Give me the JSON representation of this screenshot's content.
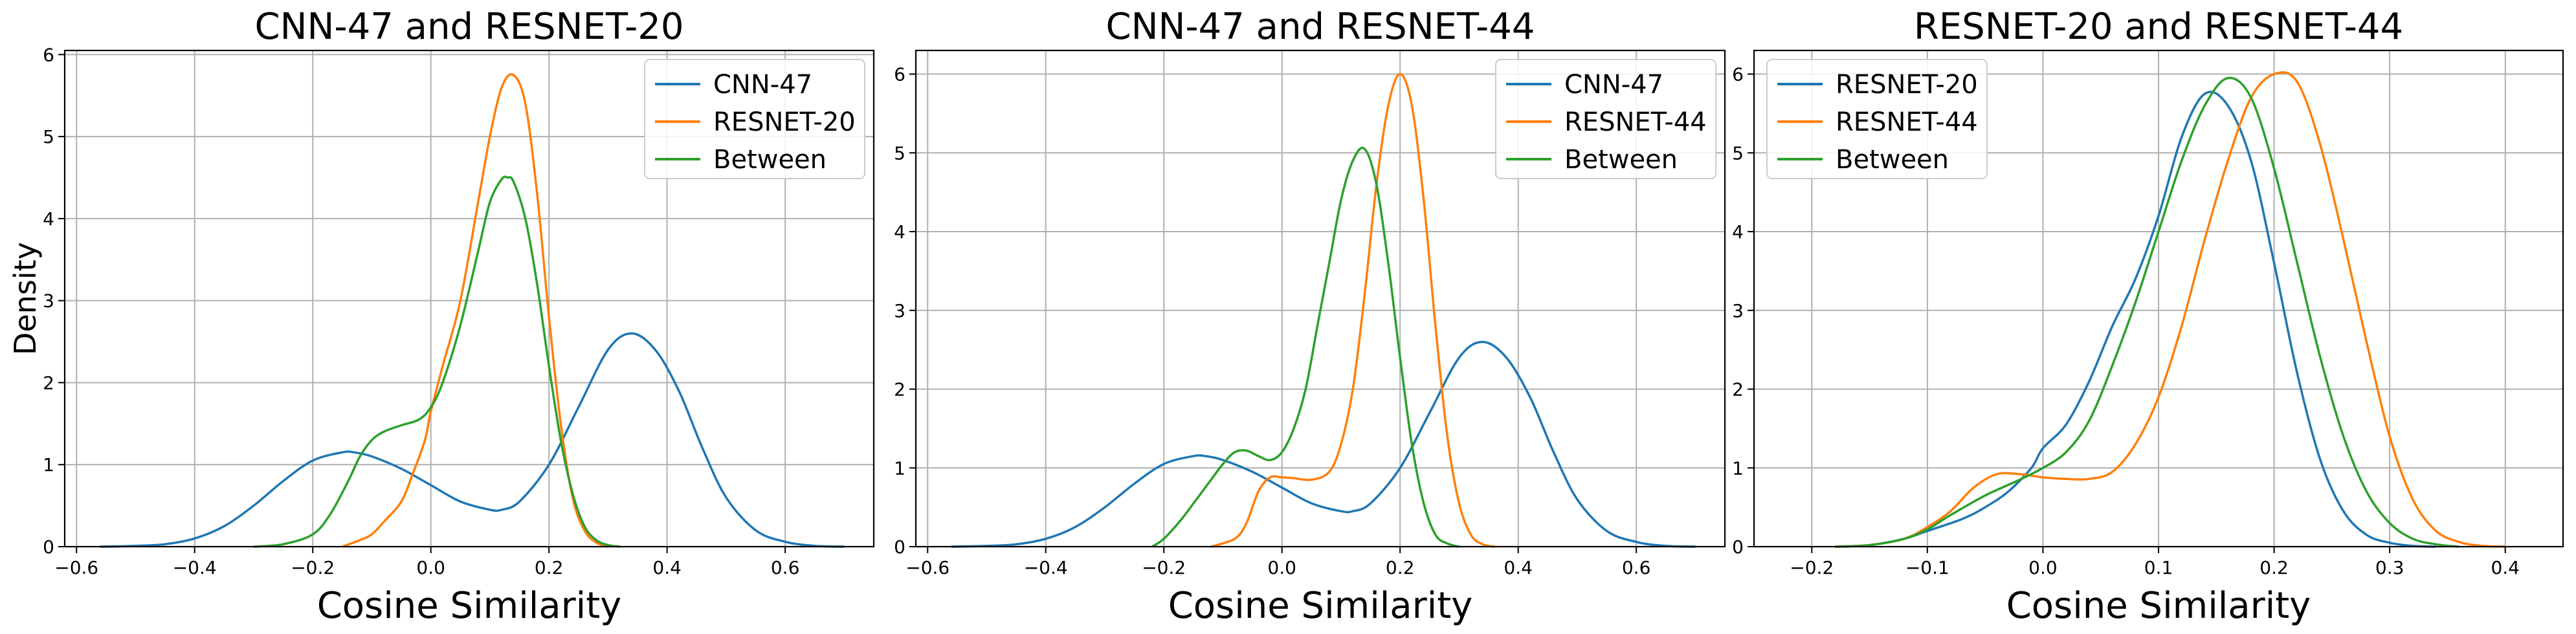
{
  "colors": {
    "CNN-47": "#1f77b4",
    "RESNET-20": "#ff7f0e",
    "RESNET-44": "#ff7f0e",
    "Between": "#2ca02c"
  },
  "chart_data": [
    {
      "type": "line",
      "title": "CNN-47 and RESNET-20",
      "xlabel": "Cosine Similarity",
      "ylabel": "Density",
      "xlim": [
        -0.62,
        0.75
      ],
      "ylim": [
        0,
        6.05
      ],
      "xticks": [
        -0.6,
        -0.4,
        -0.2,
        0.0,
        0.2,
        0.4,
        0.6
      ],
      "xtick_labels": [
        "−0.6",
        "−0.4",
        "−0.2",
        "0.0",
        "0.2",
        "0.4",
        "0.6"
      ],
      "yticks": [
        0,
        1,
        2,
        3,
        4,
        5,
        6
      ],
      "ytick_labels": [
        "0",
        "1",
        "2",
        "3",
        "4",
        "5",
        "6"
      ],
      "grid": true,
      "legend": "top-right",
      "series": [
        {
          "name": "CNN-47",
          "color": "#1f77b4",
          "x": [
            -0.56,
            -0.5,
            -0.45,
            -0.4,
            -0.35,
            -0.3,
            -0.25,
            -0.2,
            -0.15,
            -0.13,
            -0.1,
            -0.05,
            0.0,
            0.05,
            0.1,
            0.12,
            0.15,
            0.2,
            0.25,
            0.3,
            0.34,
            0.38,
            0.42,
            0.46,
            0.5,
            0.55,
            0.6,
            0.65,
            0.7
          ],
          "y": [
            0.0,
            0.01,
            0.03,
            0.1,
            0.25,
            0.5,
            0.8,
            1.05,
            1.15,
            1.15,
            1.1,
            0.95,
            0.75,
            0.55,
            0.45,
            0.45,
            0.55,
            1.0,
            1.7,
            2.4,
            2.6,
            2.4,
            1.9,
            1.2,
            0.6,
            0.2,
            0.06,
            0.01,
            0.0
          ]
        },
        {
          "name": "RESNET-20",
          "color": "#ff7f0e",
          "x": [
            -0.15,
            -0.12,
            -0.1,
            -0.08,
            -0.05,
            -0.03,
            -0.01,
            0.0,
            0.02,
            0.05,
            0.08,
            0.1,
            0.12,
            0.14,
            0.16,
            0.18,
            0.2,
            0.22,
            0.24,
            0.26,
            0.28,
            0.3
          ],
          "y": [
            0.0,
            0.08,
            0.15,
            0.3,
            0.55,
            0.9,
            1.3,
            1.65,
            2.2,
            3.0,
            4.2,
            5.0,
            5.6,
            5.75,
            5.4,
            4.3,
            2.8,
            1.5,
            0.6,
            0.2,
            0.05,
            0.0
          ]
        },
        {
          "name": "Between",
          "color": "#2ca02c",
          "x": [
            -0.3,
            -0.25,
            -0.2,
            -0.17,
            -0.14,
            -0.12,
            -0.1,
            -0.08,
            -0.05,
            -0.02,
            0.0,
            0.02,
            0.05,
            0.08,
            0.1,
            0.12,
            0.13,
            0.14,
            0.16,
            0.18,
            0.2,
            0.22,
            0.24,
            0.26,
            0.28,
            0.3,
            0.32
          ],
          "y": [
            0.0,
            0.03,
            0.15,
            0.4,
            0.8,
            1.1,
            1.3,
            1.4,
            1.48,
            1.55,
            1.7,
            2.0,
            2.7,
            3.6,
            4.2,
            4.48,
            4.5,
            4.45,
            4.0,
            3.2,
            2.2,
            1.3,
            0.65,
            0.25,
            0.08,
            0.02,
            0.0
          ]
        }
      ]
    },
    {
      "type": "line",
      "title": "CNN-47 and RESNET-44",
      "xlabel": "Cosine Similarity",
      "ylabel": "",
      "xlim": [
        -0.62,
        0.75
      ],
      "ylim": [
        0,
        6.3
      ],
      "xticks": [
        -0.6,
        -0.4,
        -0.2,
        0.0,
        0.2,
        0.4,
        0.6
      ],
      "xtick_labels": [
        "−0.6",
        "−0.4",
        "−0.2",
        "0.0",
        "0.2",
        "0.4",
        "0.6"
      ],
      "yticks": [
        0,
        1,
        2,
        3,
        4,
        5,
        6
      ],
      "ytick_labels": [
        "0",
        "1",
        "2",
        "3",
        "4",
        "5",
        "6"
      ],
      "grid": true,
      "legend": "top-right",
      "series": [
        {
          "name": "CNN-47",
          "color": "#1f77b4",
          "x": [
            -0.56,
            -0.5,
            -0.45,
            -0.4,
            -0.35,
            -0.3,
            -0.25,
            -0.2,
            -0.15,
            -0.13,
            -0.1,
            -0.05,
            0.0,
            0.05,
            0.1,
            0.12,
            0.15,
            0.2,
            0.25,
            0.3,
            0.34,
            0.38,
            0.42,
            0.46,
            0.5,
            0.55,
            0.6,
            0.65,
            0.7
          ],
          "y": [
            0.0,
            0.01,
            0.03,
            0.1,
            0.25,
            0.5,
            0.8,
            1.05,
            1.15,
            1.15,
            1.1,
            0.95,
            0.75,
            0.55,
            0.45,
            0.45,
            0.55,
            1.0,
            1.7,
            2.4,
            2.6,
            2.4,
            1.9,
            1.2,
            0.6,
            0.2,
            0.06,
            0.01,
            0.0
          ]
        },
        {
          "name": "RESNET-44",
          "color": "#ff7f0e",
          "x": [
            -0.12,
            -0.08,
            -0.06,
            -0.04,
            -0.02,
            0.0,
            0.02,
            0.05,
            0.08,
            0.1,
            0.12,
            0.14,
            0.16,
            0.18,
            0.2,
            0.22,
            0.24,
            0.26,
            0.28,
            0.3,
            0.32,
            0.34,
            0.36
          ],
          "y": [
            0.0,
            0.1,
            0.3,
            0.7,
            0.88,
            0.88,
            0.87,
            0.85,
            0.95,
            1.3,
            2.0,
            3.2,
            4.6,
            5.6,
            6.0,
            5.6,
            4.4,
            2.8,
            1.4,
            0.55,
            0.15,
            0.03,
            0.0
          ]
        },
        {
          "name": "Between",
          "color": "#2ca02c",
          "x": [
            -0.22,
            -0.2,
            -0.17,
            -0.14,
            -0.12,
            -0.1,
            -0.08,
            -0.06,
            -0.04,
            -0.02,
            0.0,
            0.02,
            0.04,
            0.06,
            0.08,
            0.1,
            0.12,
            0.14,
            0.16,
            0.18,
            0.2,
            0.22,
            0.24,
            0.26,
            0.28,
            0.3
          ],
          "y": [
            0.0,
            0.1,
            0.35,
            0.65,
            0.85,
            1.05,
            1.2,
            1.22,
            1.15,
            1.1,
            1.2,
            1.5,
            2.0,
            2.8,
            3.6,
            4.4,
            4.9,
            5.05,
            4.6,
            3.6,
            2.4,
            1.3,
            0.55,
            0.15,
            0.04,
            0.0
          ]
        }
      ]
    },
    {
      "type": "line",
      "title": "RESNET-20 and RESNET-44",
      "xlabel": "Cosine Similarity",
      "ylabel": "",
      "xlim": [
        -0.25,
        0.45
      ],
      "ylim": [
        0,
        6.3
      ],
      "xticks": [
        -0.2,
        -0.1,
        0.0,
        0.1,
        0.2,
        0.3,
        0.4
      ],
      "xtick_labels": [
        "−0.2",
        "−0.1",
        "0.0",
        "0.1",
        "0.2",
        "0.3",
        "0.4"
      ],
      "yticks": [
        0,
        1,
        2,
        3,
        4,
        5,
        6
      ],
      "ytick_labels": [
        "0",
        "1",
        "2",
        "3",
        "4",
        "5",
        "6"
      ],
      "grid": true,
      "legend": "top-left",
      "series": [
        {
          "name": "RESNET-20",
          "color": "#1f77b4",
          "x": [
            -0.18,
            -0.15,
            -0.12,
            -0.1,
            -0.07,
            -0.05,
            -0.03,
            -0.01,
            0.0,
            0.02,
            0.04,
            0.06,
            0.08,
            0.1,
            0.12,
            0.14,
            0.16,
            0.18,
            0.2,
            0.22,
            0.24,
            0.26,
            0.28,
            0.3,
            0.32,
            0.34
          ],
          "y": [
            0.0,
            0.02,
            0.1,
            0.2,
            0.35,
            0.5,
            0.7,
            1.0,
            1.25,
            1.55,
            2.1,
            2.8,
            3.4,
            4.2,
            5.2,
            5.75,
            5.6,
            4.9,
            3.6,
            2.2,
            1.1,
            0.45,
            0.15,
            0.05,
            0.01,
            0.0
          ]
        },
        {
          "name": "RESNET-44",
          "color": "#ff7f0e",
          "x": [
            -0.18,
            -0.15,
            -0.12,
            -0.1,
            -0.08,
            -0.06,
            -0.04,
            -0.02,
            0.0,
            0.02,
            0.04,
            0.06,
            0.08,
            0.1,
            0.12,
            0.14,
            0.16,
            0.18,
            0.2,
            0.22,
            0.24,
            0.26,
            0.28,
            0.3,
            0.32,
            0.34,
            0.36,
            0.38,
            0.4
          ],
          "y": [
            0.0,
            0.02,
            0.1,
            0.25,
            0.45,
            0.75,
            0.92,
            0.92,
            0.88,
            0.86,
            0.86,
            0.95,
            1.3,
            1.9,
            2.8,
            3.9,
            4.9,
            5.7,
            6.0,
            5.9,
            5.1,
            3.9,
            2.6,
            1.4,
            0.6,
            0.2,
            0.06,
            0.01,
            0.0
          ]
        },
        {
          "name": "Between",
          "color": "#2ca02c",
          "x": [
            -0.18,
            -0.15,
            -0.12,
            -0.1,
            -0.08,
            -0.05,
            -0.02,
            0.0,
            0.02,
            0.04,
            0.06,
            0.08,
            0.1,
            0.12,
            0.14,
            0.16,
            0.18,
            0.2,
            0.22,
            0.24,
            0.26,
            0.28,
            0.3,
            0.32,
            0.34,
            0.36
          ],
          "y": [
            0.0,
            0.02,
            0.1,
            0.22,
            0.4,
            0.65,
            0.85,
            1.0,
            1.2,
            1.6,
            2.3,
            3.1,
            4.0,
            4.9,
            5.6,
            5.95,
            5.7,
            4.8,
            3.6,
            2.4,
            1.4,
            0.7,
            0.3,
            0.1,
            0.03,
            0.0
          ]
        }
      ]
    }
  ]
}
